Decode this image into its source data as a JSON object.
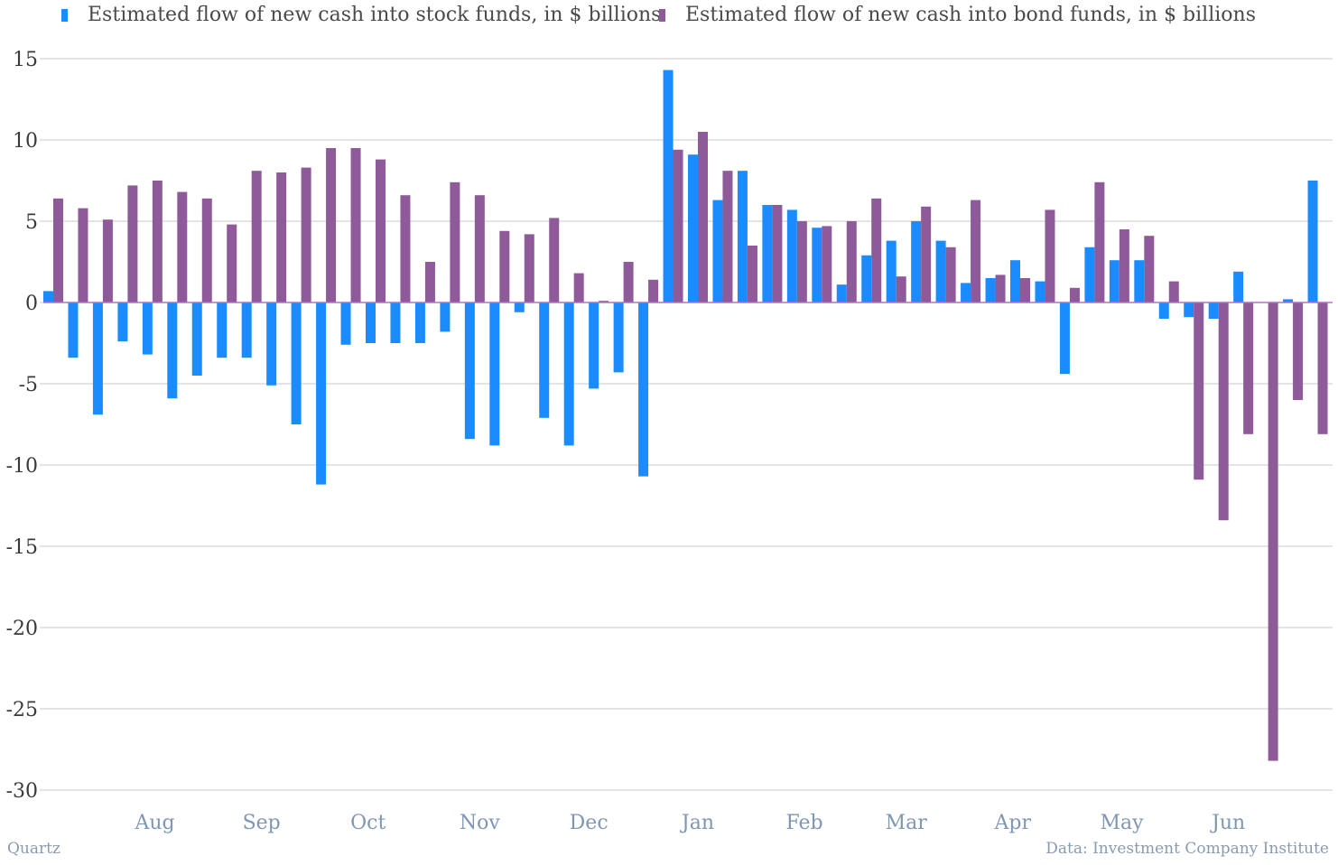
{
  "colors": {
    "stock": "#1a8cff",
    "bond": "#8e5a99",
    "grid": "#c8c8c8",
    "axis_text": "#3a3a3a",
    "month_text": "#7f97b3",
    "zero_line": "#b070c8"
  },
  "chart_data": {
    "type": "bar",
    "ylim": [
      -30,
      15
    ],
    "yticks": [
      15,
      10,
      5,
      0,
      -5,
      -10,
      -15,
      -20,
      -25,
      -30
    ],
    "xlabel": "",
    "ylabel": "",
    "grid": true,
    "legend_placement": "top",
    "months": [
      "Aug",
      "Sep",
      "Oct",
      "Nov",
      "Dec",
      "Jan",
      "Feb",
      "Mar",
      "Apr",
      "May",
      "Jun"
    ],
    "month_week_index": [
      4.5,
      8.8,
      13.1,
      17.6,
      22,
      26.4,
      30.7,
      34.8,
      39.1,
      43.5,
      47.8
    ],
    "series": [
      {
        "name": "Estimated flow of new cash into stock funds, in $ billions",
        "values": [
          0.7,
          -3.4,
          -6.9,
          -2.4,
          -3.2,
          -5.9,
          -4.5,
          -3.4,
          -3.4,
          -5.1,
          -7.5,
          -11.2,
          -2.6,
          -2.5,
          -2.5,
          -2.5,
          -1.8,
          -8.4,
          -8.8,
          -0.6,
          -7.1,
          -8.8,
          -5.3,
          -4.3,
          -10.7,
          14.3,
          9.1,
          6.3,
          8.1,
          6.0,
          5.7,
          4.6,
          1.1,
          2.9,
          3.8,
          5.0,
          3.8,
          1.2,
          1.5,
          2.6,
          1.3,
          -4.4,
          3.4,
          2.6,
          2.6,
          -1.0,
          -0.9,
          -1.0,
          1.9,
          0.0,
          0.2,
          7.5
        ]
      },
      {
        "name": "Estimated flow of new cash into bond funds, in $ billions",
        "values": [
          6.4,
          5.8,
          5.1,
          7.2,
          7.5,
          6.8,
          6.4,
          4.8,
          8.1,
          8.0,
          8.3,
          9.5,
          9.5,
          8.8,
          6.6,
          2.5,
          7.4,
          6.6,
          4.4,
          4.2,
          5.2,
          1.8,
          0.1,
          2.5,
          1.4,
          9.4,
          10.5,
          8.1,
          3.5,
          6.0,
          5.0,
          4.7,
          5.0,
          6.4,
          1.6,
          5.9,
          3.4,
          6.3,
          1.7,
          1.5,
          5.7,
          0.9,
          7.4,
          4.5,
          4.1,
          1.3,
          -10.9,
          -13.4,
          -8.1,
          -28.2,
          -6.0,
          -8.1
        ]
      }
    ]
  },
  "footer": {
    "source_left": "Quartz",
    "source_right": "Data: Investment Company Institute"
  }
}
